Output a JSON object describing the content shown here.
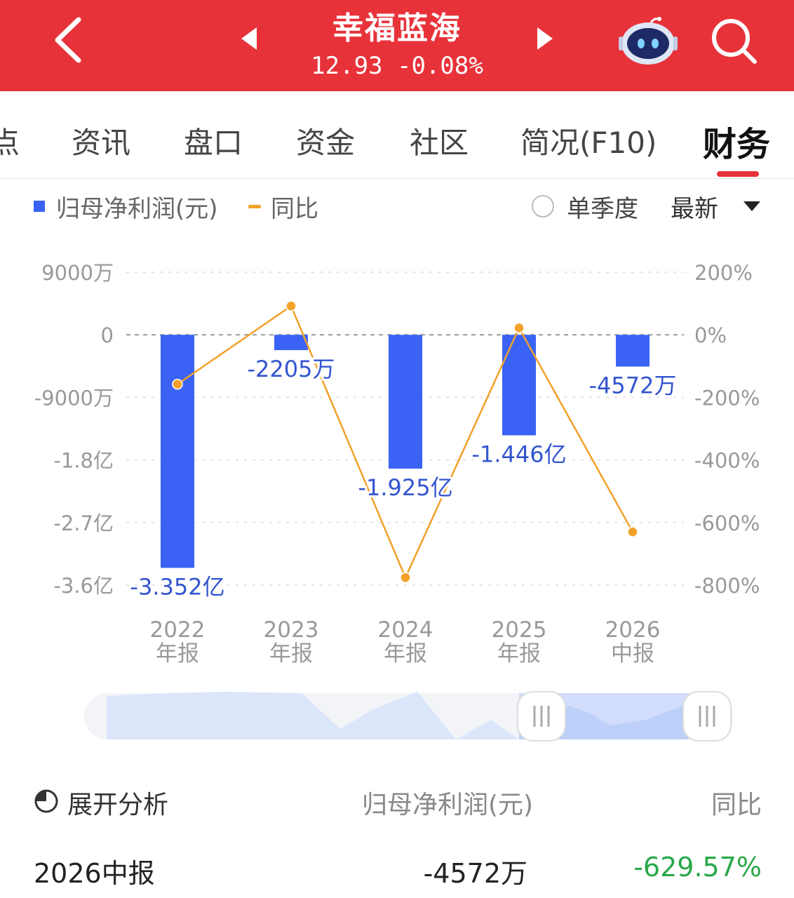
{
  "header": {
    "stock_name": "幸福蓝海",
    "quote": "12.93 -0.08%"
  },
  "tabs": [
    {
      "label": "点"
    },
    {
      "label": "资讯"
    },
    {
      "label": "盘口"
    },
    {
      "label": "资金"
    },
    {
      "label": "社区"
    },
    {
      "label": "简况(F10)"
    },
    {
      "label": "财务"
    }
  ],
  "active_tab": "财务",
  "legend": {
    "profit_label": "归母净利润(元)",
    "yoy_label": "同比",
    "single_quarter": "单季度",
    "latest": "最新"
  },
  "colors": {
    "header_red": "#e8323a",
    "bar_blue": "#3a63f5",
    "line_orange": "#f2a12a",
    "positive_green": "#2aa84a"
  },
  "chart_data": {
    "type": "bar",
    "categories": [
      "2022年报",
      "2023年报",
      "2024年报",
      "2025年报",
      "2026中报"
    ],
    "category_lines": [
      [
        "2022",
        "年报"
      ],
      [
        "2023",
        "年报"
      ],
      [
        "2024",
        "年报"
      ],
      [
        "2025",
        "年报"
      ],
      [
        "2026",
        "中报"
      ]
    ],
    "series": [
      {
        "name": "归母净利润(元)",
        "type": "bar",
        "axis": "left",
        "values": [
          -33520,
          -2205,
          -19250,
          -14460,
          -4572
        ],
        "labels": [
          "-3.352亿",
          "-2205万",
          "-1.925亿",
          "-1.446亿",
          "-4572万"
        ]
      },
      {
        "name": "同比",
        "type": "line",
        "axis": "right",
        "values": [
          -158,
          92,
          -776,
          22,
          -630
        ]
      }
    ],
    "y_left": {
      "unit": "万元",
      "range": [
        -36000,
        9000
      ],
      "ticks": [
        9000,
        0,
        -9000,
        -18000,
        -27000,
        -36000
      ],
      "tick_labels": [
        "9000万",
        "0",
        "-9000万",
        "-1.8亿",
        "-2.7亿",
        "-3.6亿"
      ]
    },
    "y_right": {
      "unit": "%",
      "range": [
        -800,
        200
      ],
      "ticks": [
        200,
        0,
        -200,
        -400,
        -600,
        -800
      ],
      "tick_labels": [
        "200%",
        "0%",
        "-200%",
        "-400%",
        "-600%",
        "-800%"
      ]
    },
    "grid": true,
    "legend_position": "top-left"
  },
  "range_slider": {
    "selected_start": 0.67,
    "selected_end": 1.0
  },
  "table": {
    "expand_label": "展开分析",
    "col_profit": "归母净利润(元)",
    "col_yoy": "同比",
    "rows": [
      {
        "period": "2026中报",
        "profit": "-4572万",
        "yoy": "-629.57%"
      }
    ]
  }
}
